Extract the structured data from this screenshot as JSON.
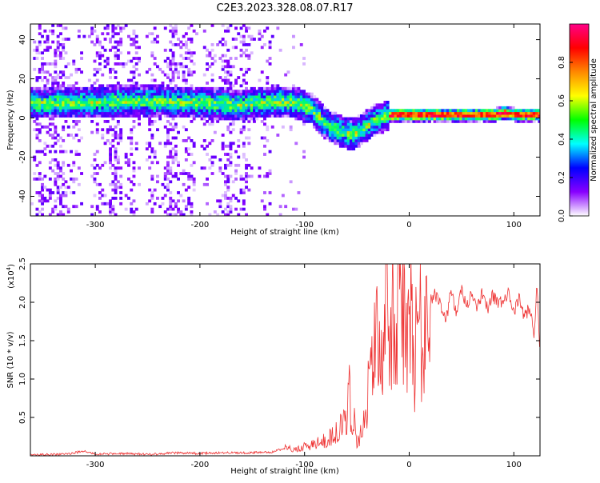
{
  "title": "C2E3.2023.328.08.07.R17",
  "chart_data": [
    {
      "type": "heatmap",
      "name": "spectrogram",
      "xlabel": "Height of straight line (km)",
      "ylabel": "Frequency (Hz)",
      "xlim": [
        -362,
        125
      ],
      "ylim": [
        -50,
        48
      ],
      "xticks": [
        -300,
        -200,
        -100,
        0,
        100
      ],
      "xtick_labels": [
        "-300",
        "-200",
        "-100",
        "0",
        "100"
      ],
      "yticks": [
        -40,
        -20,
        0,
        20,
        40
      ],
      "ytick_labels": [
        "-40",
        "-20",
        "0",
        "20",
        "40"
      ],
      "colorbar": {
        "label": "Normalized spectral amplitude",
        "range": [
          0,
          1
        ],
        "ticks": [
          0.0,
          0.2,
          0.4,
          0.6,
          0.8
        ],
        "tick_labels": [
          "0.0",
          "0.2",
          "0.4",
          "0.6",
          "0.8"
        ],
        "colors": [
          "#ffffff",
          "#8800ff",
          "#0000ff",
          "#00ffff",
          "#00ff00",
          "#ffff00",
          "#ff8800",
          "#ff0000",
          "#ff0088"
        ]
      },
      "ridge_frequency": {
        "x": [
          -362,
          -320,
          -280,
          -240,
          -200,
          -160,
          -130,
          -110,
          -95,
          -80,
          -65,
          -55,
          -45,
          -35,
          -25,
          -15,
          0,
          40,
          80,
          90,
          100,
          125
        ],
        "hz": [
          7,
          7,
          8,
          8,
          7,
          6,
          8,
          7,
          4,
          -4,
          -8,
          -9,
          -6,
          -2,
          0,
          1,
          1,
          1,
          1,
          2,
          1,
          1
        ]
      }
    },
    {
      "type": "line",
      "name": "snr",
      "xlabel": "Height of straight line (km)",
      "ylabel": "SNR (10 * v/v)",
      "scale_note": "(x10",
      "scale_exp": "4",
      "scale_close": ")",
      "xlim": [
        -362,
        125
      ],
      "ylim": [
        0,
        2.5
      ],
      "xticks": [
        -300,
        -200,
        -100,
        0,
        100
      ],
      "xtick_labels": [
        "-300",
        "-200",
        "-100",
        "0",
        "100"
      ],
      "yticks": [
        0.5,
        1.0,
        1.5,
        2.0,
        2.5
      ],
      "ytick_labels": [
        "0.5",
        "1.0",
        "1.5",
        "2.0",
        "2.5"
      ],
      "color": "#ee3333",
      "series": [
        {
          "name": "SNR",
          "x": [
            -362,
            -330,
            -310,
            -300,
            -280,
            -250,
            -220,
            -200,
            -180,
            -150,
            -130,
            -120,
            -110,
            -100,
            -90,
            -80,
            -70,
            -60,
            -57,
            -55,
            -53,
            -50,
            -45,
            -40,
            -35,
            -30,
            -25,
            -22,
            -20,
            -18,
            -15,
            -12,
            -10,
            -8,
            -5,
            -3,
            0,
            5,
            8,
            10,
            12,
            15,
            20,
            25,
            30,
            35,
            40,
            45,
            50,
            55,
            60,
            65,
            70,
            75,
            80,
            85,
            90,
            95,
            100,
            105,
            110,
            115,
            120,
            122,
            125
          ],
          "y": [
            0.01,
            0.02,
            0.06,
            0.02,
            0.03,
            0.02,
            0.04,
            0.03,
            0.04,
            0.04,
            0.05,
            0.1,
            0.08,
            0.12,
            0.15,
            0.2,
            0.3,
            0.45,
            0.9,
            0.35,
            0.5,
            0.2,
            0.3,
            0.8,
            1.3,
            1.5,
            1.2,
            1.9,
            2.5,
            1.4,
            1.9,
            1.6,
            2.25,
            1.5,
            1.9,
            1.3,
            2.0,
            1.2,
            1.8,
            1.9,
            1.3,
            1.7,
            2.0,
            2.1,
            2.0,
            1.75,
            2.15,
            1.85,
            2.15,
            1.95,
            2.1,
            1.9,
            2.12,
            1.9,
            2.1,
            1.95,
            2.05,
            2.1,
            1.85,
            2.05,
            1.8,
            1.95,
            1.55,
            2.3,
            1.3
          ]
        }
      ]
    }
  ]
}
